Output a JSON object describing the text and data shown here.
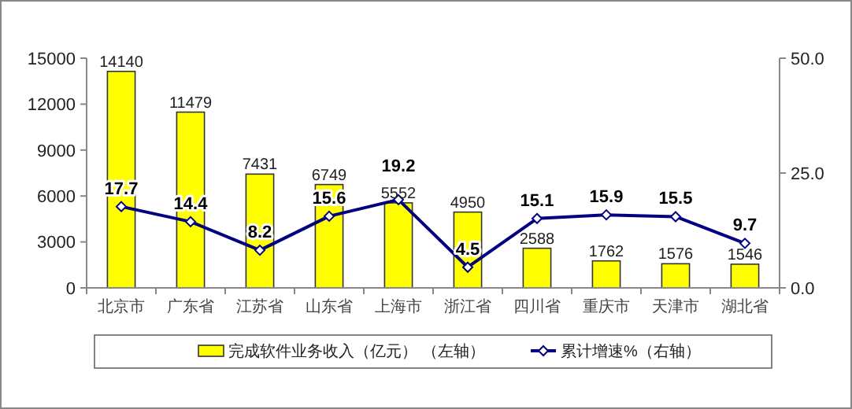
{
  "chart_data": {
    "type": "bar",
    "categories": [
      "北京市",
      "广东省",
      "江苏省",
      "山东省",
      "上海市",
      "浙江省",
      "四川省",
      "重庆市",
      "天津市",
      "湖北省"
    ],
    "series": [
      {
        "name": "完成软件业务收入（亿元） （左轴）",
        "color": "#ffff00",
        "values": [
          14140,
          11479,
          7431,
          6749,
          5552,
          4950,
          2588,
          1762,
          1576,
          1546
        ]
      },
      {
        "name": "累计增速%（右轴）",
        "type": "line",
        "axis": "y2",
        "color": "#000080",
        "marker": "diamond",
        "values": [
          17.7,
          14.4,
          8.2,
          15.6,
          19.2,
          4.5,
          15.1,
          15.9,
          15.5,
          9.7
        ]
      }
    ],
    "ylim": [
      0,
      15000
    ],
    "yticks": [
      0,
      3000,
      6000,
      9000,
      12000,
      15000
    ],
    "y2lim": [
      0,
      50
    ],
    "y2ticks": [
      {
        "value": 0,
        "label": "0.0"
      },
      {
        "value": 25,
        "label": "25.0"
      },
      {
        "value": 50,
        "label": "50.0"
      }
    ],
    "data_labels": true,
    "legend": "bottom",
    "grid": false
  }
}
